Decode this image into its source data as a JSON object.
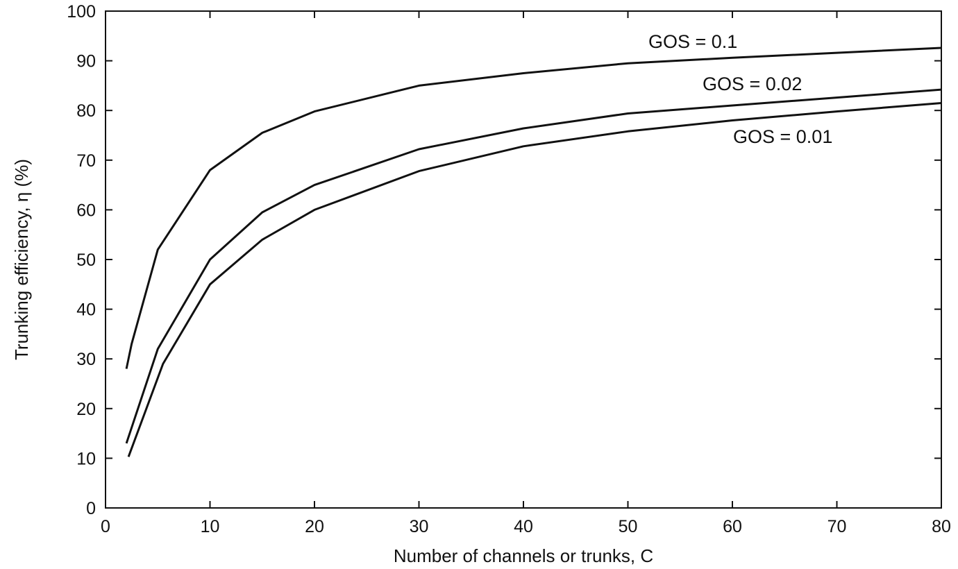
{
  "chart_data": {
    "type": "line",
    "xlabel": "Number of channels or trunks, C",
    "ylabel": "Trunking efficiency, η (%)",
    "xlim": [
      0,
      80
    ],
    "ylim": [
      0,
      100
    ],
    "xticks": [
      0,
      10,
      20,
      30,
      40,
      50,
      60,
      70,
      80
    ],
    "yticks": [
      0,
      10,
      20,
      30,
      40,
      50,
      60,
      70,
      80,
      90,
      100
    ],
    "grid": false,
    "series": [
      {
        "name": "GOS = 0.1",
        "x": [
          2,
          2.5,
          5,
          10,
          15,
          20,
          30,
          40,
          50,
          60,
          70,
          80
        ],
        "y": [
          28,
          33,
          52,
          68,
          75.5,
          79.8,
          85,
          87.5,
          89.5,
          90.6,
          91.6,
          92.6
        ]
      },
      {
        "name": "GOS = 0.02",
        "x": [
          2,
          5,
          10,
          15,
          20,
          30,
          40,
          50,
          60,
          70,
          80
        ],
        "y": [
          13,
          32,
          50,
          59.5,
          65,
          72.2,
          76.4,
          79.4,
          81,
          82.6,
          84.2
        ]
      },
      {
        "name": "GOS = 0.01",
        "x": [
          2.2,
          5.5,
          10,
          15,
          20,
          30,
          40,
          50,
          60,
          70,
          80
        ],
        "y": [
          10.3,
          29,
          45,
          54,
          60,
          67.8,
          72.8,
          75.8,
          78,
          79.8,
          81.5
        ]
      }
    ]
  }
}
